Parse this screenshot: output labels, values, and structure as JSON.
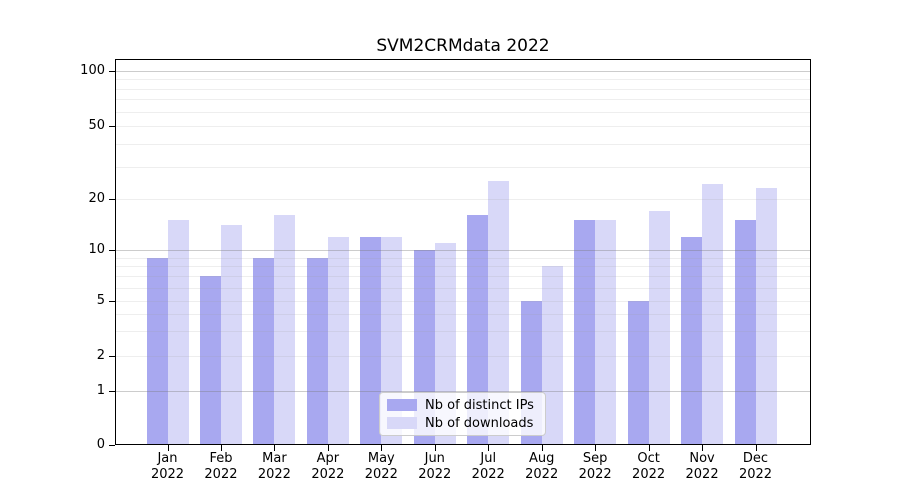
{
  "title": "SVM2CRMdata 2022",
  "chart_data": {
    "type": "bar",
    "title": "SVM2CRMdata 2022",
    "categories": [
      "Jan",
      "Feb",
      "Mar",
      "Apr",
      "May",
      "Jun",
      "Jul",
      "Aug",
      "Sep",
      "Oct",
      "Nov",
      "Dec"
    ],
    "year_label": "2022",
    "series": [
      {
        "name": "Nb of distinct IPs",
        "color": "#a8a8f0",
        "values": [
          9,
          7,
          9,
          9,
          12,
          10,
          16,
          5,
          15,
          5,
          12,
          15
        ]
      },
      {
        "name": "Nb of downloads",
        "color": "#d8d8f8",
        "values": [
          15,
          14,
          16,
          12,
          12,
          11,
          25,
          8,
          15,
          17,
          24,
          23
        ]
      }
    ],
    "y_ticks": [
      0,
      1,
      2,
      5,
      10,
      20,
      50,
      100
    ],
    "major_gridlines": [
      1,
      10,
      100
    ],
    "minor_gridlines": [
      2,
      3,
      4,
      5,
      6,
      7,
      8,
      9,
      20,
      30,
      40,
      50,
      60,
      70,
      80,
      90
    ],
    "yscale": "symlog",
    "ylim": [
      0,
      130
    ],
    "grid": true,
    "legend_position": "bottom-center"
  }
}
